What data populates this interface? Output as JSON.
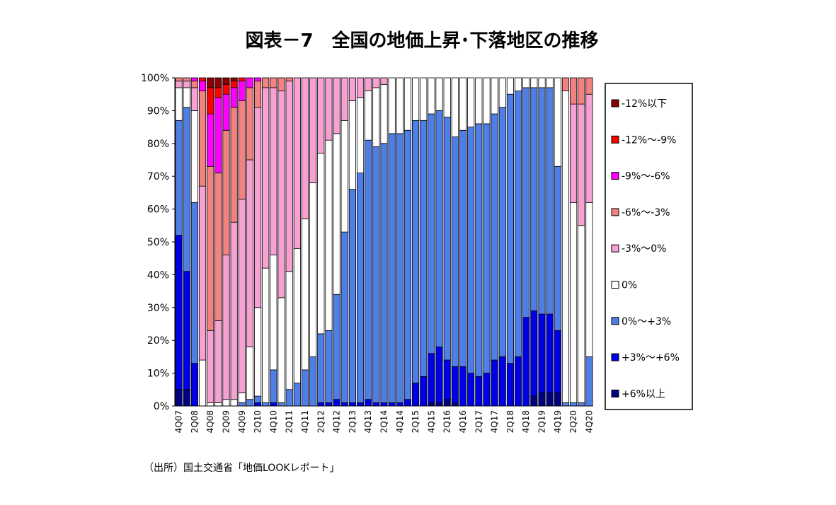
{
  "chart_data": {
    "type": "stacked_bar_100",
    "title": "図表－7　全国の地価上昇･下落地区の推移",
    "source": "（出所）国土交通省「地価LOOKレポート」",
    "categories": [
      "4Q07",
      null,
      "2Q08",
      null,
      "4Q08",
      null,
      "2Q09",
      null,
      "4Q09",
      null,
      "2Q10",
      null,
      "4Q10",
      null,
      "2Q11",
      null,
      "4Q11",
      null,
      "2Q12",
      null,
      "4Q12",
      null,
      "2Q13",
      null,
      "4Q13",
      null,
      "2Q14",
      null,
      "4Q14",
      null,
      "2Q15",
      null,
      "4Q15",
      null,
      "2Q16",
      null,
      "4Q16",
      null,
      "2Q17",
      null,
      "4Q17",
      null,
      "2Q18",
      null,
      "4Q18",
      null,
      "2Q19",
      null,
      "4Q19",
      null,
      "2Q20",
      null,
      "4Q20"
    ],
    "series": [
      {
        "name": "+6%以上",
        "color": "#000080",
        "values": [
          5,
          5,
          0,
          0,
          0,
          0,
          0,
          0,
          0,
          0,
          0,
          0,
          0,
          0,
          0,
          0,
          0,
          0,
          0,
          0,
          0,
          0,
          0,
          0,
          0,
          0,
          0,
          0,
          0,
          0,
          0,
          0,
          1,
          1,
          2,
          1,
          0,
          0,
          0,
          0,
          0,
          0,
          0,
          0,
          0,
          3,
          4,
          4,
          4,
          0,
          0,
          0,
          0
        ]
      },
      {
        "name": "+3%～+6%",
        "color": "#0000e6",
        "values": [
          47,
          36,
          13,
          0,
          0,
          0,
          0,
          0,
          0,
          0,
          1,
          0,
          1,
          0,
          0,
          0,
          0,
          0,
          1,
          1,
          2,
          1,
          1,
          1,
          2,
          1,
          1,
          1,
          1,
          2,
          7,
          9,
          15,
          17,
          12,
          11,
          12,
          10,
          9,
          10,
          14,
          15,
          13,
          15,
          27,
          26,
          24,
          24,
          19,
          0,
          0,
          0,
          0
        ]
      },
      {
        "name": "0%～+3%",
        "color": "#4f7fe6",
        "values": [
          35,
          50,
          49,
          0,
          0,
          0,
          0,
          0,
          1,
          2,
          2,
          1,
          10,
          1,
          5,
          7,
          11,
          15,
          21,
          22,
          32,
          52,
          65,
          70,
          79,
          78,
          79,
          82,
          82,
          82,
          80,
          78,
          73,
          72,
          74,
          70,
          72,
          75,
          77,
          76,
          75,
          76,
          82,
          81,
          70,
          68,
          69,
          69,
          50,
          1,
          1,
          1,
          15
        ]
      },
      {
        "name": "0%",
        "color": "#ffffff",
        "values": [
          10,
          6,
          28,
          14,
          1,
          1,
          2,
          2,
          3,
          16,
          27,
          41,
          35,
          32,
          36,
          41,
          46,
          53,
          55,
          58,
          49,
          34,
          27,
          23,
          15,
          18,
          18,
          17,
          17,
          16,
          13,
          13,
          11,
          10,
          12,
          18,
          16,
          15,
          14,
          14,
          11,
          9,
          5,
          4,
          3,
          3,
          3,
          3,
          27,
          95,
          61,
          54,
          47
        ]
      },
      {
        "name": "-3%～0%",
        "color": "#f7a1d3",
        "values": [
          2,
          2,
          7,
          53,
          22,
          25,
          44,
          54,
          59,
          57,
          61,
          55,
          51,
          63,
          58,
          52,
          43,
          32,
          23,
          19,
          17,
          13,
          7,
          6,
          4,
          3,
          2,
          0,
          0,
          0,
          0,
          0,
          0,
          0,
          0,
          0,
          0,
          0,
          0,
          0,
          0,
          0,
          0,
          0,
          0,
          0,
          0,
          0,
          0,
          0,
          30,
          37,
          33
        ]
      },
      {
        "name": "-6%～-3%",
        "color": "#f28282",
        "values": [
          1,
          1,
          2,
          29,
          50,
          45,
          38,
          35,
          30,
          22,
          8,
          3,
          3,
          4,
          1,
          0,
          0,
          0,
          0,
          0,
          0,
          0,
          0,
          0,
          0,
          0,
          0,
          0,
          0,
          0,
          0,
          0,
          0,
          0,
          0,
          0,
          0,
          0,
          0,
          0,
          0,
          0,
          0,
          0,
          0,
          0,
          0,
          0,
          0,
          4,
          8,
          8,
          5
        ]
      },
      {
        "name": "-9%～-6%",
        "color": "#ff00ff",
        "values": [
          0,
          0,
          1,
          3,
          16,
          23,
          11,
          6,
          6,
          3,
          1,
          0,
          0,
          0,
          0,
          0,
          0,
          0,
          0,
          0,
          0,
          0,
          0,
          0,
          0,
          0,
          0,
          0,
          0,
          0,
          0,
          0,
          0,
          0,
          0,
          0,
          0,
          0,
          0,
          0,
          0,
          0,
          0,
          0,
          0,
          0,
          0,
          0,
          0,
          0,
          0,
          0,
          0
        ]
      },
      {
        "name": "-12%～-9%",
        "color": "#ff0000",
        "values": [
          0,
          0,
          0,
          1,
          8,
          3,
          3,
          2,
          1,
          0,
          0,
          0,
          0,
          0,
          0,
          0,
          0,
          0,
          0,
          0,
          0,
          0,
          0,
          0,
          0,
          0,
          0,
          0,
          0,
          0,
          0,
          0,
          0,
          0,
          0,
          0,
          0,
          0,
          0,
          0,
          0,
          0,
          0,
          0,
          0,
          0,
          0,
          0,
          0,
          0,
          0,
          0,
          0
        ]
      },
      {
        "name": "-12%以下",
        "color": "#8b0000",
        "values": [
          0,
          0,
          0,
          0,
          3,
          3,
          2,
          1,
          0,
          0,
          0,
          0,
          0,
          0,
          0,
          0,
          0,
          0,
          0,
          0,
          0,
          0,
          0,
          0,
          0,
          0,
          0,
          0,
          0,
          0,
          0,
          0,
          0,
          0,
          0,
          0,
          0,
          0,
          0,
          0,
          0,
          0,
          0,
          0,
          0,
          0,
          0,
          0,
          0,
          0,
          0,
          0,
          0
        ]
      }
    ],
    "ylim": [
      0,
      100
    ],
    "yticks": [
      {
        "value": 0,
        "label": "0%"
      },
      {
        "value": 10,
        "label": "10%"
      },
      {
        "value": 20,
        "label": "20%"
      },
      {
        "value": 30,
        "label": "30%"
      },
      {
        "value": 40,
        "label": "40%"
      },
      {
        "value": 50,
        "label": "50%"
      },
      {
        "value": 60,
        "label": "60%"
      },
      {
        "value": 70,
        "label": "70%"
      },
      {
        "value": 80,
        "label": "80%"
      },
      {
        "value": 90,
        "label": "90%"
      },
      {
        "value": 100,
        "label": "100%"
      }
    ],
    "grid": false,
    "legend": "right"
  }
}
